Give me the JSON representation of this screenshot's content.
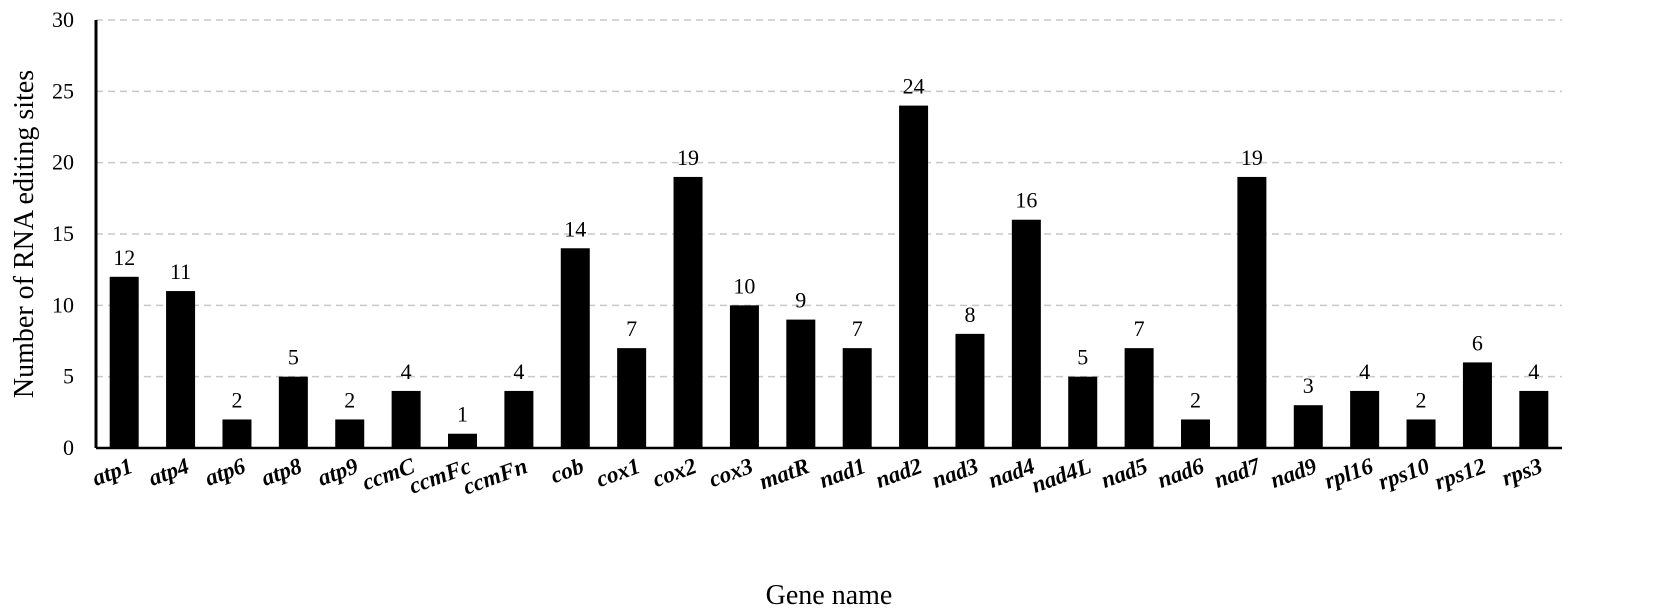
{
  "chart_data": {
    "type": "bar",
    "title": "",
    "xlabel": "Gene name",
    "ylabel": "Number of RNA editing sites",
    "ylim": [
      0,
      30
    ],
    "yticks": [
      0,
      5,
      10,
      15,
      20,
      25,
      30
    ],
    "grid": true,
    "legend": "none",
    "bar_color": "#000000",
    "categories": [
      "atp1",
      "atp4",
      "atp6",
      "atp8",
      "atp9",
      "ccmC",
      "ccmFc",
      "ccmFn",
      "cob",
      "cox1",
      "cox2",
      "cox3",
      "matR",
      "nad1",
      "nad2",
      "nad3",
      "nad4",
      "nad4L",
      "nad5",
      "nad6",
      "nad7",
      "nad9",
      "rpl16",
      "rps10",
      "rps12",
      "rps3"
    ],
    "values": [
      12,
      11,
      2,
      5,
      2,
      4,
      1,
      4,
      14,
      7,
      19,
      10,
      9,
      7,
      24,
      8,
      16,
      5,
      7,
      2,
      19,
      3,
      4,
      2,
      6,
      4
    ]
  }
}
